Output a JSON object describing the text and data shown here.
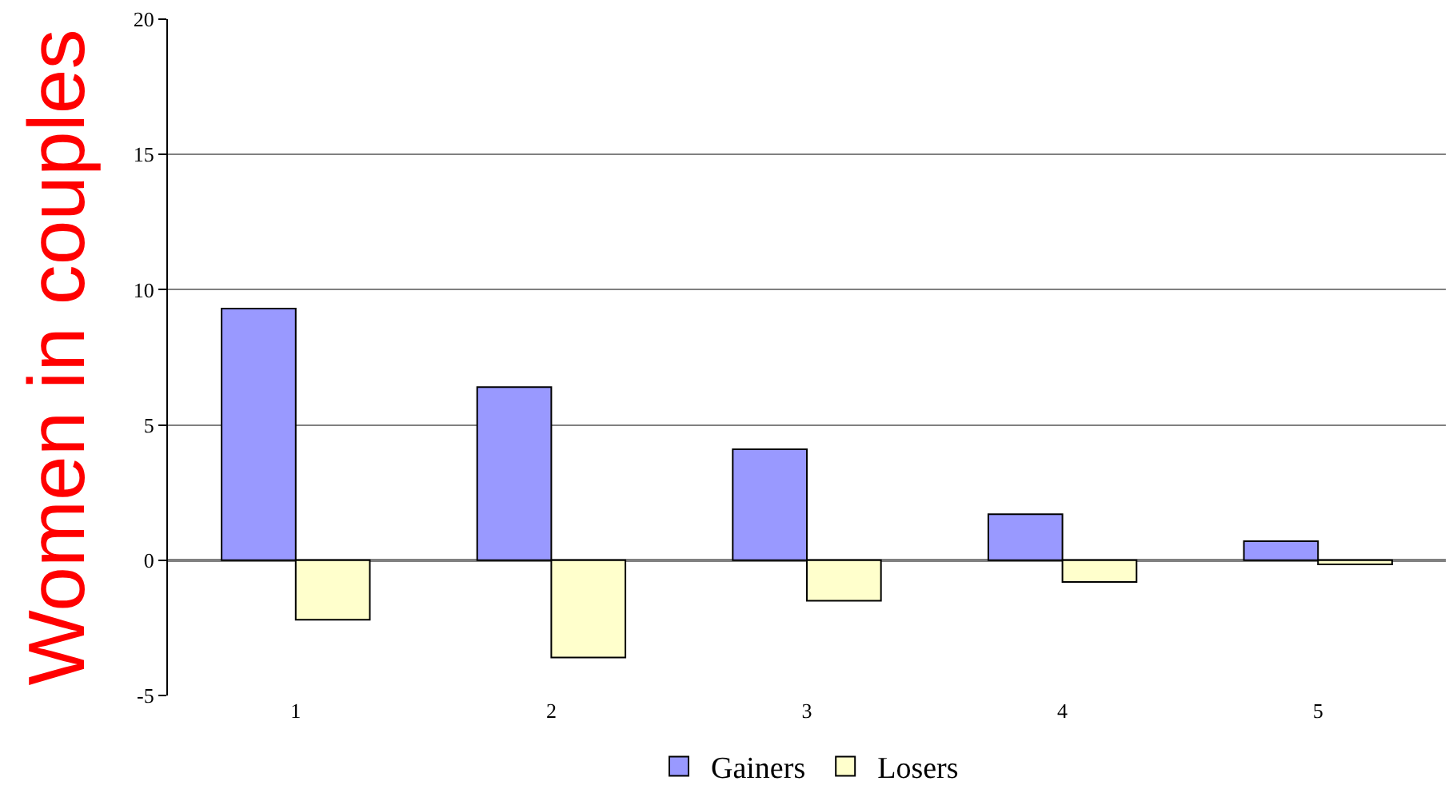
{
  "chart_data": {
    "type": "bar",
    "ylabel": "Women in couples",
    "categories": [
      "1",
      "2",
      "3",
      "4",
      "5"
    ],
    "series": [
      {
        "name": "Gainers",
        "color": "#9999ff",
        "values": [
          9.3,
          6.4,
          4.1,
          1.7,
          0.7
        ]
      },
      {
        "name": "Losers",
        "color": "#ffffcc",
        "values": [
          -2.2,
          -3.6,
          -1.5,
          -0.8,
          -0.15
        ]
      }
    ],
    "ylim": [
      -5,
      20
    ],
    "yticks": [
      -5,
      0,
      5,
      10,
      15,
      20
    ],
    "grid": "y",
    "legend": "bottom"
  }
}
